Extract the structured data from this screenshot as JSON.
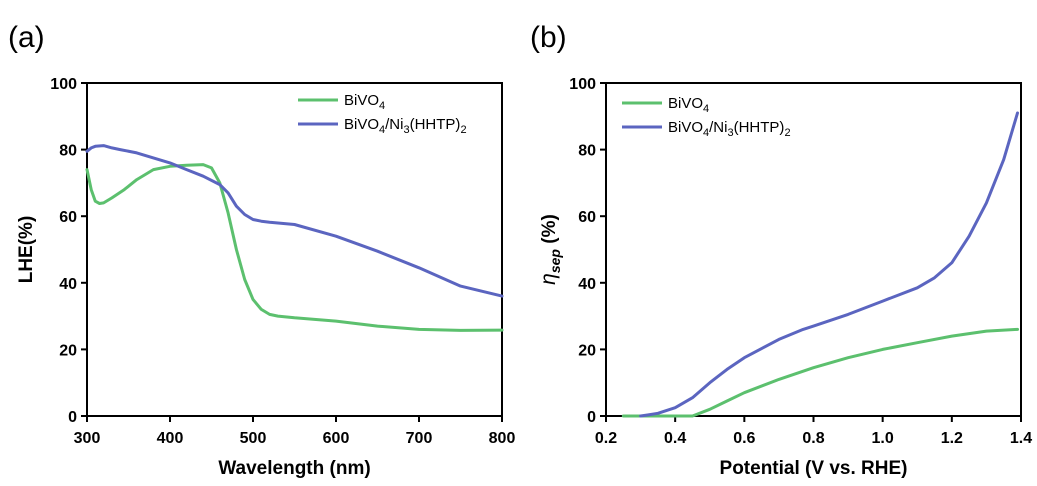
{
  "chart_data": [
    {
      "panel": "(a)",
      "type": "line",
      "xlabel": "Wavelength (nm)",
      "ylabel": "LHE(%)",
      "xlim": [
        300,
        800
      ],
      "ylim": [
        0,
        100
      ],
      "xticks": [
        300,
        400,
        500,
        600,
        700,
        800
      ],
      "yticks": [
        0,
        20,
        40,
        60,
        80,
        100
      ],
      "legend_position": "top-right",
      "series": [
        {
          "name": "BiVO",
          "sub": "4",
          "rest": "",
          "color": "#5cc06e",
          "x": [
            300,
            305,
            310,
            315,
            320,
            330,
            345,
            360,
            380,
            400,
            420,
            440,
            450,
            460,
            470,
            480,
            490,
            500,
            510,
            520,
            530,
            550,
            600,
            650,
            700,
            750,
            800
          ],
          "y": [
            74,
            68,
            64.5,
            63.8,
            64,
            65.5,
            68,
            71,
            74,
            75,
            75.3,
            75.5,
            74.5,
            70,
            61,
            50,
            41,
            35,
            32,
            30.5,
            30,
            29.5,
            28.5,
            27,
            26,
            25.7,
            25.8
          ]
        },
        {
          "name": "BiVO",
          "sub": "4",
          "rest": "/Ni",
          "sub2": "3",
          "rest2": "(HHTP)",
          "sub3": "2",
          "color": "#5b65c0",
          "x": [
            300,
            305,
            310,
            320,
            330,
            340,
            360,
            380,
            400,
            420,
            440,
            460,
            470,
            480,
            490,
            500,
            510,
            520,
            550,
            600,
            650,
            700,
            750,
            800
          ],
          "y": [
            79.5,
            80.5,
            81,
            81.2,
            80.5,
            80,
            79,
            77.5,
            76,
            74,
            72,
            69.5,
            67,
            63,
            60.5,
            59,
            58.5,
            58.2,
            57.5,
            54,
            49.5,
            44.5,
            39,
            36
          ]
        }
      ]
    },
    {
      "panel": "(b)",
      "type": "line",
      "xlabel": "Potential (V vs. RHE)",
      "ylabel_symbol": "η",
      "ylabel_sub": "sep",
      "ylabel_rest": " (%)",
      "xlim": [
        0.2,
        1.4
      ],
      "ylim": [
        0,
        100
      ],
      "xticks": [
        0.2,
        0.4,
        0.6,
        0.8,
        1.0,
        1.2,
        1.4
      ],
      "yticks": [
        0,
        20,
        40,
        60,
        80,
        100
      ],
      "legend_position": "top-left",
      "series": [
        {
          "name": "BiVO",
          "sub": "4",
          "rest": "",
          "color": "#5cc06e",
          "x": [
            0.25,
            0.3,
            0.35,
            0.4,
            0.45,
            0.5,
            0.55,
            0.6,
            0.7,
            0.8,
            0.9,
            1.0,
            1.1,
            1.2,
            1.3,
            1.39
          ],
          "y": [
            0,
            0,
            0,
            0,
            0,
            2,
            4.5,
            7,
            11,
            14.5,
            17.5,
            20,
            22,
            24,
            25.5,
            26
          ]
        },
        {
          "name": "BiVO",
          "sub": "4",
          "rest": "/Ni",
          "sub2": "3",
          "rest2": "(HHTP)",
          "sub3": "2",
          "color": "#5b65c0",
          "x": [
            0.3,
            0.32,
            0.35,
            0.4,
            0.45,
            0.5,
            0.55,
            0.6,
            0.7,
            0.77,
            0.8,
            0.9,
            1.0,
            1.1,
            1.15,
            1.2,
            1.25,
            1.3,
            1.35,
            1.39
          ],
          "y": [
            0,
            0.3,
            0.8,
            2.5,
            5.5,
            10,
            14,
            17.5,
            23,
            26,
            27,
            30.5,
            34.5,
            38.5,
            41.5,
            46,
            54,
            64,
            77,
            91
          ]
        }
      ]
    }
  ]
}
